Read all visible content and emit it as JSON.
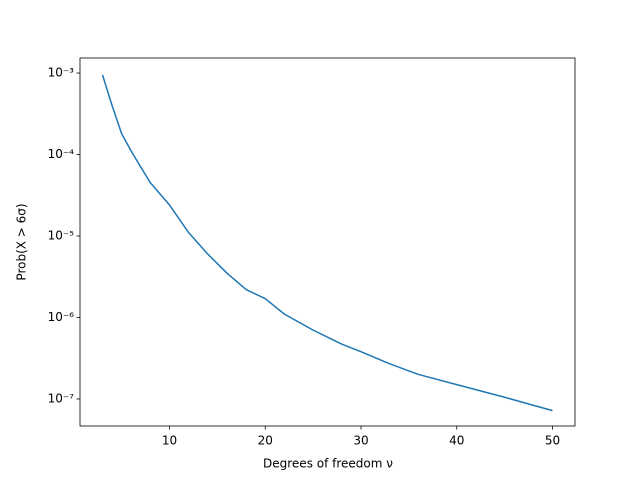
{
  "chart_data": {
    "type": "line",
    "xlabel": "Degrees of freedom ν",
    "ylabel": "Prob(X > 6σ)",
    "x": [
      3,
      4,
      5,
      6,
      7,
      8,
      10,
      12,
      14,
      16,
      18,
      20,
      22,
      25,
      28,
      30,
      33,
      36,
      40,
      45,
      50
    ],
    "values": [
      0.00095,
      0.0004,
      0.00018,
      0.00011,
      7e-05,
      4.5e-05,
      2.4e-05,
      1.1e-05,
      6e-06,
      3.5e-06,
      2.2e-06,
      1.7e-06,
      1.1e-06,
      7e-07,
      4.7e-07,
      3.8e-07,
      2.7e-07,
      2e-07,
      1.5e-07,
      1.05e-07,
      7.2e-08
    ],
    "color": "#1f77b4",
    "yscale": "log",
    "xlim": [
      0.65,
      52.35
    ],
    "ylim": [
      4.66e-08,
      0.00153
    ],
    "xticks": [
      10,
      20,
      30,
      40,
      50
    ],
    "yticks": [
      {
        "value": 0.001,
        "label": "10⁻³"
      },
      {
        "value": 0.0001,
        "label": "10⁻⁴"
      },
      {
        "value": 1e-05,
        "label": "10⁻⁵"
      },
      {
        "value": 1e-06,
        "label": "10⁻⁶"
      },
      {
        "value": 1e-07,
        "label": "10⁻⁷"
      }
    ]
  }
}
